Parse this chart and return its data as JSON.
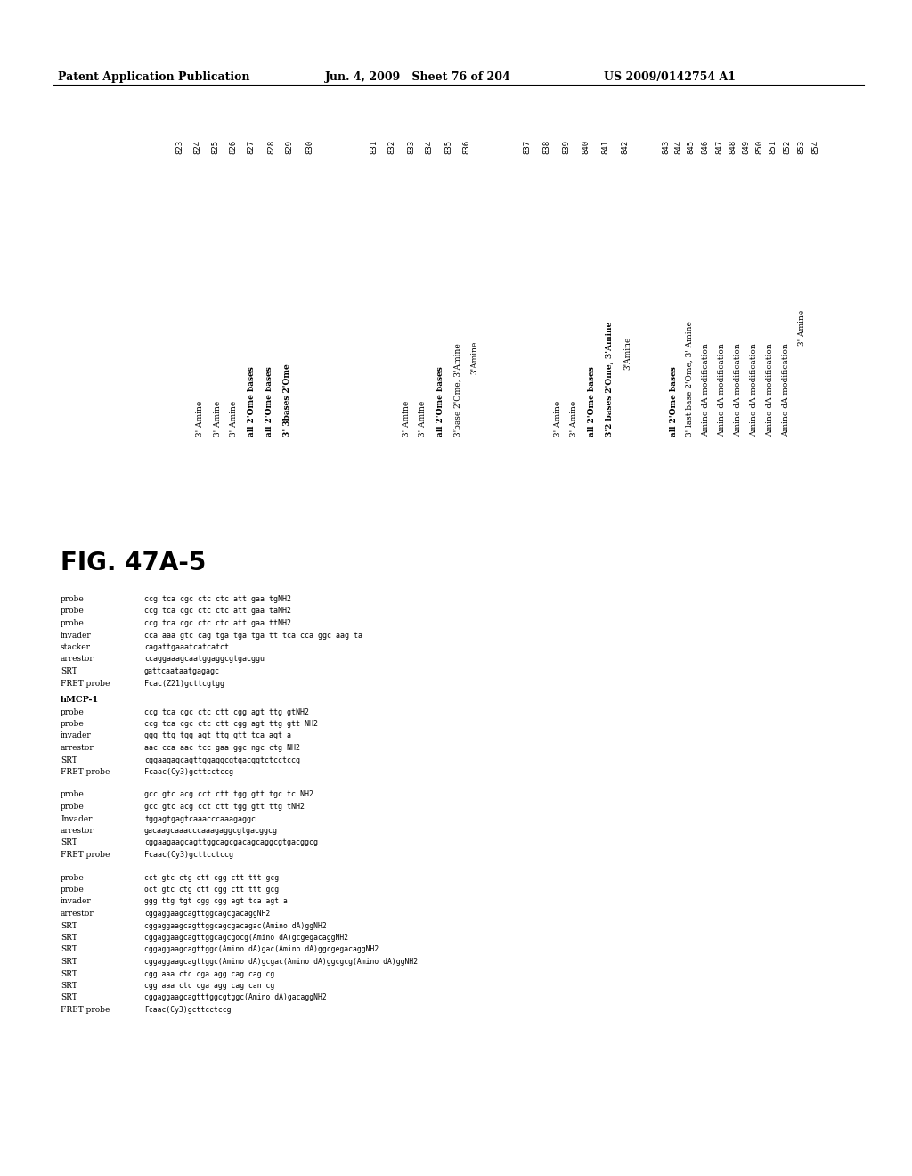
{
  "header_left": "Patent Application Publication",
  "header_mid": "Jun. 4, 2009   Sheet 76 of 204",
  "header_right": "US 2009/0142754 A1",
  "fig_label": "FIG. 47A-5",
  "numbers_group1": [
    "823",
    "824",
    "825",
    "826",
    "827",
    "828",
    "829",
    "830"
  ],
  "numbers_group2": [
    "831",
    "832",
    "833",
    "834",
    "835",
    "836"
  ],
  "numbers_group3": [
    "837",
    "838",
    "839",
    "840",
    "841",
    "842"
  ],
  "numbers_group4": [
    "843",
    "844",
    "845",
    "846",
    "847",
    "848",
    "849",
    "850",
    "851",
    "852",
    "853",
    "854"
  ],
  "section1_rows": [
    [
      "probe",
      "ccg tca cgc ctc ctc att gaa tgNH2"
    ],
    [
      "probe",
      "ccg tca cgc ctc ctc att gaa taNH2"
    ],
    [
      "probe",
      "ccg tca cgc ctc ctc att gaa ttNH2"
    ],
    [
      "invader",
      "cca aaa gtc cag tga tga tga tt tca cca ggc aag ta"
    ],
    [
      "stacker",
      "cagattgaaatcatcatct"
    ],
    [
      "arrestor",
      "ccaggaaagcaatggaggcgtgacggu"
    ],
    [
      "SRT",
      "gattcaataatgagagc"
    ],
    [
      "FRET probe",
      "Fcac(Z21)gcttcgtgg"
    ]
  ],
  "section1_mods": [
    "3' Amine",
    "3' Amine",
    "3' Amine",
    "all 2'Ome bases",
    "all 2'Ome bases",
    "3' 3bases 2'Ome",
    "",
    ""
  ],
  "section2_header": "hMCP-1",
  "section2_rows": [
    [
      "probe",
      "ccg tca cgc ctc ctt cgg agt ttg gtNH2"
    ],
    [
      "probe",
      "ccg tca cgc ctc ctt cgg agt ttg gtt NH2"
    ],
    [
      "invader",
      "ggg ttg tgg agt ttg gtt tca agt a"
    ],
    [
      "arrestor",
      "aac cca aac tcc gaa ggc ngc ctg NH2"
    ],
    [
      "SRT",
      "cggaagagcagttggaggcgtgacggtctcctccg"
    ],
    [
      "FRET probe",
      "Fcaac(Cy3)gcttcctccg"
    ]
  ],
  "section2_mods": [
    "3' Amine",
    "3' Amine",
    "all 2'Ome bases, 3'Amine",
    "3'base 2'Ome, 3'Amine",
    "",
    ""
  ],
  "section3_rows": [
    [
      "probe",
      "gcc gtc acg cct ctt tgg gtt tgc tc NH2"
    ],
    [
      "probe",
      "gcc gtc acg cct ctt tgg gtt ttg tNH2"
    ],
    [
      "Invader",
      "tggagtgagtcaaacccaaagaggc"
    ],
    [
      "arrestor",
      "gacaagcaaacccaaagaggcgtgacggcg"
    ],
    [
      "SRT",
      "cggaagaagcagttggcagcgacagcaggcgtgacggcg"
    ],
    [
      "FRET probe",
      "Fcaac(Cy3)gcttcctccg"
    ]
  ],
  "section3_mods": [
    "3' Amine",
    "3' Amine",
    "all 2'Ome bases",
    "3'2 bases 2'Ome, 3'Amine",
    "",
    ""
  ],
  "section4_rows": [
    [
      "probe",
      "cct gtc ctg ctt cgg ctt ttt gcg"
    ],
    [
      "probe",
      "oct gtc ctg ctt cgg ctt ttt gcg"
    ],
    [
      "invader",
      "ggg ttg tgt cgg cgg agt tca agt a"
    ],
    [
      "arrestor",
      "cggaggaagcagttggcagcgacaggNH2"
    ],
    [
      "SRT",
      "cggaggaagcagttggcagcgacagac(Amino dA)ggNH2"
    ],
    [
      "SRT",
      "cggaggaagcagttggcagcgocg(Amino dA)gcgegacaggNH2"
    ],
    [
      "SRT",
      "cggaggaagcagttggc(Amino dA)gac(Amino dA)ggcgegacaggNH2"
    ],
    [
      "SRT",
      "cggaggaagcagttggc(Amino dA)gcgac(Amino dA)ggcgcg(Amino dA)ggNH2"
    ],
    [
      "SRT",
      "cgg aaa ctc cga agg cag cag cg"
    ],
    [
      "SRT",
      "cgg aaa ctc cga agg cag can cg"
    ],
    [
      "SRT",
      "cggaggaagcagtttggcgtggc(Amino dA)gacaggNH2"
    ],
    [
      "FRET probe",
      "Fcaac(Cy3)gcttcctccg"
    ]
  ],
  "section4_mods": [
    "all 2'Ome bases",
    "3' last base 2'Ome, 3' Amine",
    "Amino dA modification",
    "Amino dA modification",
    "Amino dA modification",
    "Amino dA modification",
    "Amino dA modification",
    "Amino dA modification",
    "",
    "",
    "",
    ""
  ]
}
